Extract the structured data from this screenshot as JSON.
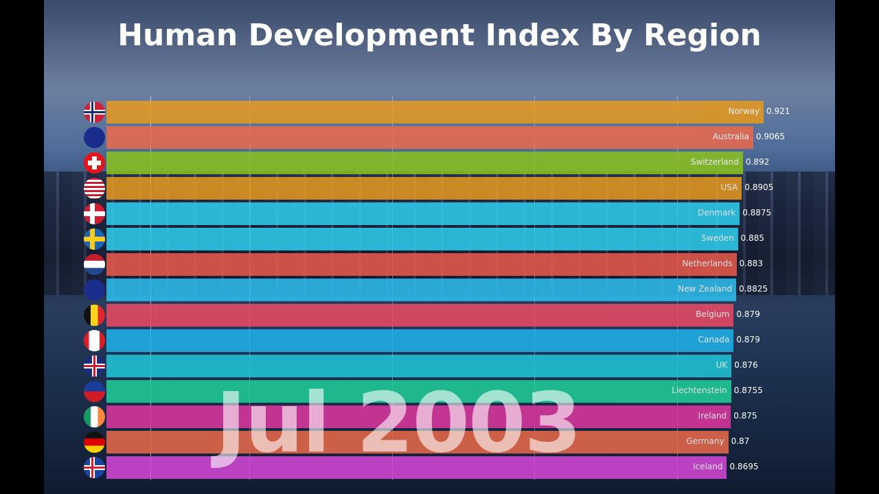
{
  "chart_data": {
    "type": "bar",
    "orientation": "horizontal",
    "title": "Human Development Index By Region",
    "date_label": "Jul 2003",
    "xlim": [
      0,
      0.921
    ],
    "gridlines": [
      0.2,
      0.4,
      0.6,
      0.8
    ],
    "grid": true,
    "categories": [
      "Norway",
      "Australia",
      "Switzerland",
      "USA",
      "Denmark",
      "Sweden",
      "Netherlands",
      "New Zealand",
      "Belgium",
      "Canada",
      "UK",
      "Liechtenstein",
      "Ireland",
      "Germany",
      "Iceland"
    ],
    "values": [
      0.921,
      0.9065,
      0.892,
      0.8905,
      0.8875,
      0.885,
      0.883,
      0.8825,
      0.879,
      0.879,
      0.876,
      0.8755,
      0.875,
      0.8715,
      0.8695
    ],
    "value_labels": [
      "0.921",
      "0.9065",
      "0.892",
      "0.8905",
      "0.8875",
      "0.885",
      "0.883",
      "0.8825",
      "0.879",
      "0.879",
      "0.876",
      "0.8755",
      "0.875",
      "0.87",
      "0.8695"
    ],
    "colors": [
      "#e89a1e",
      "#ec6a4a",
      "#8cc21c",
      "#e89a1e",
      "#2ed0f0",
      "#2ed0f0",
      "#ec5a4a",
      "#2ec0f0",
      "#ec4a64",
      "#20b4ec",
      "#20c8d8",
      "#20d09a",
      "#e036a0",
      "#ec6a4a",
      "#d848d8"
    ],
    "flags": [
      "norway",
      "australia",
      "switzerland",
      "usa",
      "denmark",
      "sweden",
      "netherlands",
      "new-zealand",
      "belgium",
      "canada",
      "uk",
      "liechtenstein",
      "ireland",
      "germany",
      "iceland"
    ]
  }
}
